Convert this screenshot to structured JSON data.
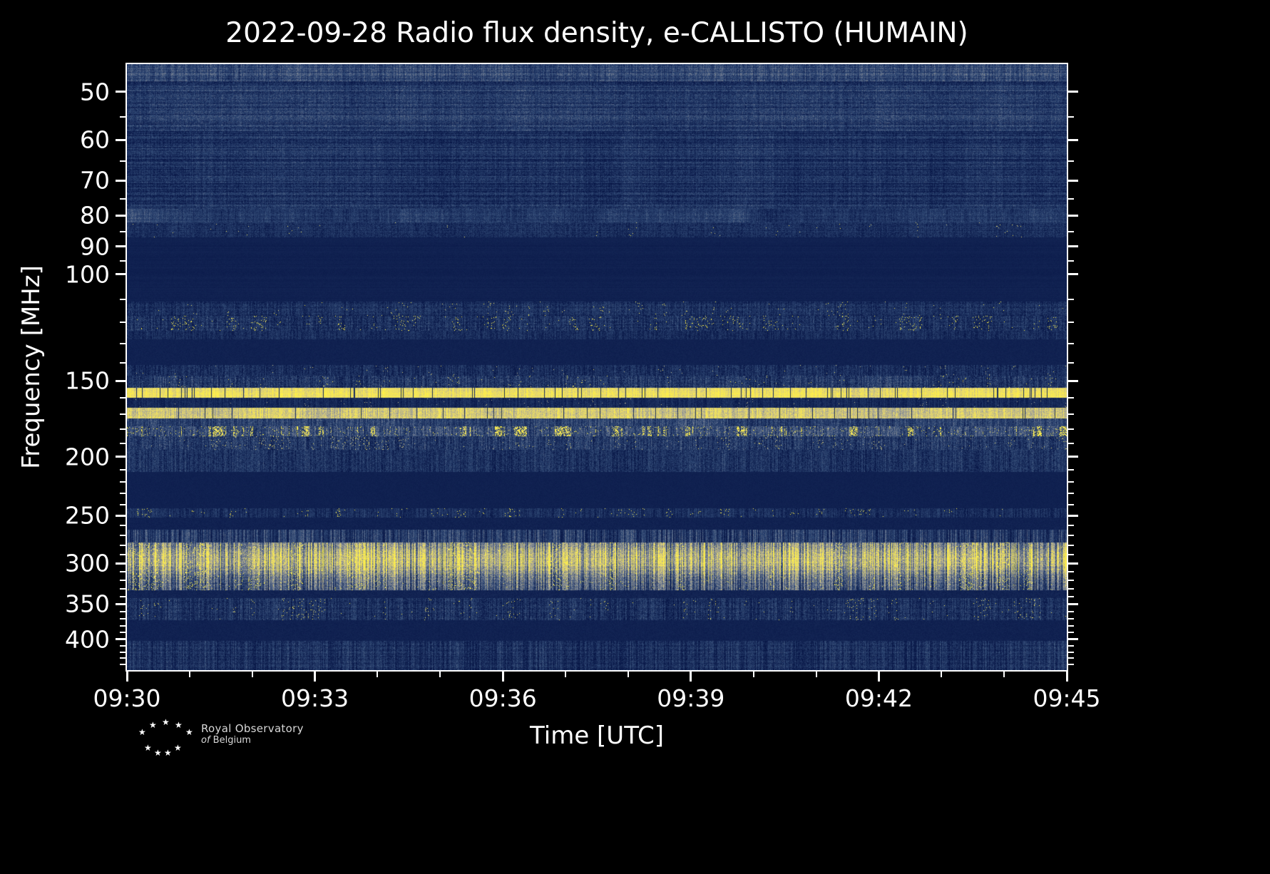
{
  "chart": {
    "title": "2022-09-28 Radio flux density, e-CALLISTO (HUMAIN)",
    "xlabel": "Time [UTC]",
    "ylabel": "Frequency [MHz]"
  },
  "chart_data": {
    "type": "heatmap",
    "title": "2022-09-28 Radio flux density, e-CALLISTO (HUMAIN)",
    "date": "2022-09-28",
    "instrument": "e-CALLISTO",
    "station": "HUMAIN",
    "xlabel": "Time [UTC]",
    "ylabel": "Frequency [MHz]",
    "x_axis": {
      "start": "09:30",
      "end": "09:45",
      "duration_minutes": 15,
      "major_tick_minutes": 3,
      "minor_tick_minutes": 1,
      "major_ticks": [
        "09:30",
        "09:33",
        "09:36",
        "09:39",
        "09:42",
        "09:45"
      ]
    },
    "y_axis": {
      "scale": "log",
      "inverted": true,
      "min_mhz": 45,
      "max_mhz": 450,
      "major_ticks": [
        50,
        60,
        70,
        80,
        90,
        100,
        150,
        200,
        250,
        300,
        350,
        400
      ],
      "minor_ticks": [
        55,
        65,
        75,
        85,
        95,
        110,
        120,
        130,
        140,
        160,
        170,
        180,
        190,
        210,
        220,
        230,
        240,
        260,
        270,
        280,
        290,
        310,
        320,
        330,
        340,
        360,
        370,
        380,
        390,
        410,
        420,
        430,
        440
      ]
    },
    "colormap": {
      "stops": [
        [
          0.0,
          [
            9,
            24,
            72
          ]
        ],
        [
          0.3,
          [
            47,
            72,
            116
          ]
        ],
        [
          0.5,
          [
            108,
            120,
            143
          ]
        ],
        [
          0.7,
          [
            175,
            172,
            148
          ]
        ],
        [
          0.85,
          [
            232,
            217,
            108
          ]
        ],
        [
          1.0,
          [
            255,
            241,
            70
          ]
        ]
      ]
    },
    "bands": [
      {
        "f": [
          45,
          48
        ],
        "base": 0.3,
        "rowAmp": 0.08,
        "colAmp": 0.06,
        "colFineAmp": 0.1,
        "pixAmp": 0.12
      },
      {
        "f": [
          48,
          58
        ],
        "base": 0.2,
        "rowAmp": 0.12,
        "colAmp": 0.08,
        "colFineAmp": 0.05,
        "pixAmp": 0.13
      },
      {
        "f": [
          58,
          78
        ],
        "base": 0.15,
        "rowAmp": 0.1,
        "colAmp": 0.07,
        "colFineAmp": 0.05,
        "pixAmp": 0.12
      },
      {
        "f": [
          78,
          82
        ],
        "base": 0.22,
        "rowAmp": 0.05,
        "colAmp": 0.18,
        "colFineAmp": 0.06,
        "pixAmp": 0.1
      },
      {
        "f": [
          82,
          87
        ],
        "base": 0.13,
        "rowAmp": 0.05,
        "colAmp": 0.05,
        "colFineAmp": 0.05,
        "pixAmp": 0.11,
        "speckleProb": 0.0015,
        "speckleVal": 0.85
      },
      {
        "f": [
          87,
          111
        ],
        "base": 0.055,
        "rowAmp": 0.015,
        "pixAmp": 0.02
      },
      {
        "f": [
          111,
          117
        ],
        "base": 0.13,
        "rowAmp": 0.05,
        "colAmp": 0.06,
        "colFineAmp": 0.08,
        "pixAmp": 0.12,
        "speckleProb": 0.004,
        "speckleVal": 0.9
      },
      {
        "f": [
          117,
          124
        ],
        "base": 0.14,
        "rowAmp": 0.05,
        "colAmp": 0.06,
        "colFineAmp": 0.1,
        "pixAmp": 0.14,
        "speckleProb": 0.012,
        "speckleVal": 1.0
      },
      {
        "f": [
          124,
          128
        ],
        "base": 0.12,
        "colAmp": 0.05,
        "colFineAmp": 0.08,
        "pixAmp": 0.1
      },
      {
        "f": [
          128,
          141
        ],
        "base": 0.06,
        "pixAmp": 0.025
      },
      {
        "f": [
          141,
          147
        ],
        "base": 0.13,
        "colFineAmp": 0.1,
        "pixAmp": 0.12,
        "speckleProb": 0.002,
        "speckleVal": 0.8
      },
      {
        "f": [
          147,
          154
        ],
        "base": 0.18,
        "rowAmp": 0.05,
        "colAmp": 0.08,
        "colFineAmp": 0.12,
        "pixAmp": 0.15,
        "speckleProb": 0.004,
        "speckleVal": 0.9
      },
      {
        "f": [
          154,
          160
        ],
        "base": 0.88,
        "rowAmp": 0.04,
        "colAmp": 0.1,
        "colFineAmp": 0.08,
        "pixAmp": 0.08,
        "gapProb": 0.05
      },
      {
        "f": [
          160,
          166
        ],
        "base": 0.1,
        "colFineAmp": 0.07,
        "pixAmp": 0.08,
        "speckleProb": 0.003,
        "speckleVal": 0.7
      },
      {
        "f": [
          166,
          173
        ],
        "base": 0.8,
        "rowAmp": 0.05,
        "colAmp": 0.15,
        "colFineAmp": 0.1,
        "pixAmp": 0.1,
        "gapProb": 0.03
      },
      {
        "f": [
          173,
          178
        ],
        "base": 0.25,
        "colAmp": 0.1,
        "colFineAmp": 0.12,
        "pixAmp": 0.12
      },
      {
        "f": [
          178,
          185
        ],
        "base": 0.3,
        "colAmp": 0.1,
        "colFineAmp": 0.15,
        "pixAmp": 0.15,
        "speckleProb": 0.1,
        "speckleVal": 0.95
      },
      {
        "f": [
          185,
          195
        ],
        "base": 0.2,
        "colAmp": 0.08,
        "colFineAmp": 0.12,
        "pixAmp": 0.15,
        "speckleProb": 0.01,
        "speckleVal": 0.8
      },
      {
        "f": [
          195,
          212
        ],
        "base": 0.16,
        "colAmp": 0.07,
        "colFineAmp": 0.1,
        "pixAmp": 0.13
      },
      {
        "f": [
          212,
          243
        ],
        "base": 0.055,
        "pixAmp": 0.02
      },
      {
        "f": [
          243,
          252
        ],
        "base": 0.13,
        "colAmp": 0.06,
        "colFineAmp": 0.1,
        "pixAmp": 0.1,
        "speckleProb": 0.008,
        "speckleVal": 1.0
      },
      {
        "f": [
          252,
          264
        ],
        "base": 0.06,
        "pixAmp": 0.03
      },
      {
        "f": [
          264,
          277
        ],
        "base": 0.22,
        "colFineAmp": 0.22,
        "pixAmp": 0.1
      },
      {
        "f": [
          277,
          332
        ],
        "base": 0.34,
        "rowAmp": 0.04,
        "colAmp": 0.1,
        "colFineAmp": 0.3,
        "pixAmp": 0.15,
        "speckleProb": 0.02,
        "speckleVal": 1.0,
        "env": {
          "center": 296,
          "sigma": 14,
          "amp": 0.38
        }
      },
      {
        "f": [
          332,
          342
        ],
        "base": 0.07,
        "pixAmp": 0.04
      },
      {
        "f": [
          342,
          372
        ],
        "base": 0.15,
        "rowAmp": 0.05,
        "colAmp": 0.06,
        "colFineAmp": 0.12,
        "pixAmp": 0.13,
        "speckleProb": 0.006,
        "speckleVal": 0.9
      },
      {
        "f": [
          372,
          403
        ],
        "base": 0.06,
        "pixAmp": 0.03
      },
      {
        "f": [
          403,
          450
        ],
        "base": 0.14,
        "rowAmp": 0.04,
        "colAmp": 0.06,
        "colFineAmp": 0.12,
        "pixAmp": 0.12
      }
    ]
  },
  "footer": {
    "logo": {
      "line1": "Royal Observatory",
      "line2_italic": "of",
      "line2_rest": "Belgium",
      "star_glyph": "★",
      "star_count": 9
    }
  }
}
